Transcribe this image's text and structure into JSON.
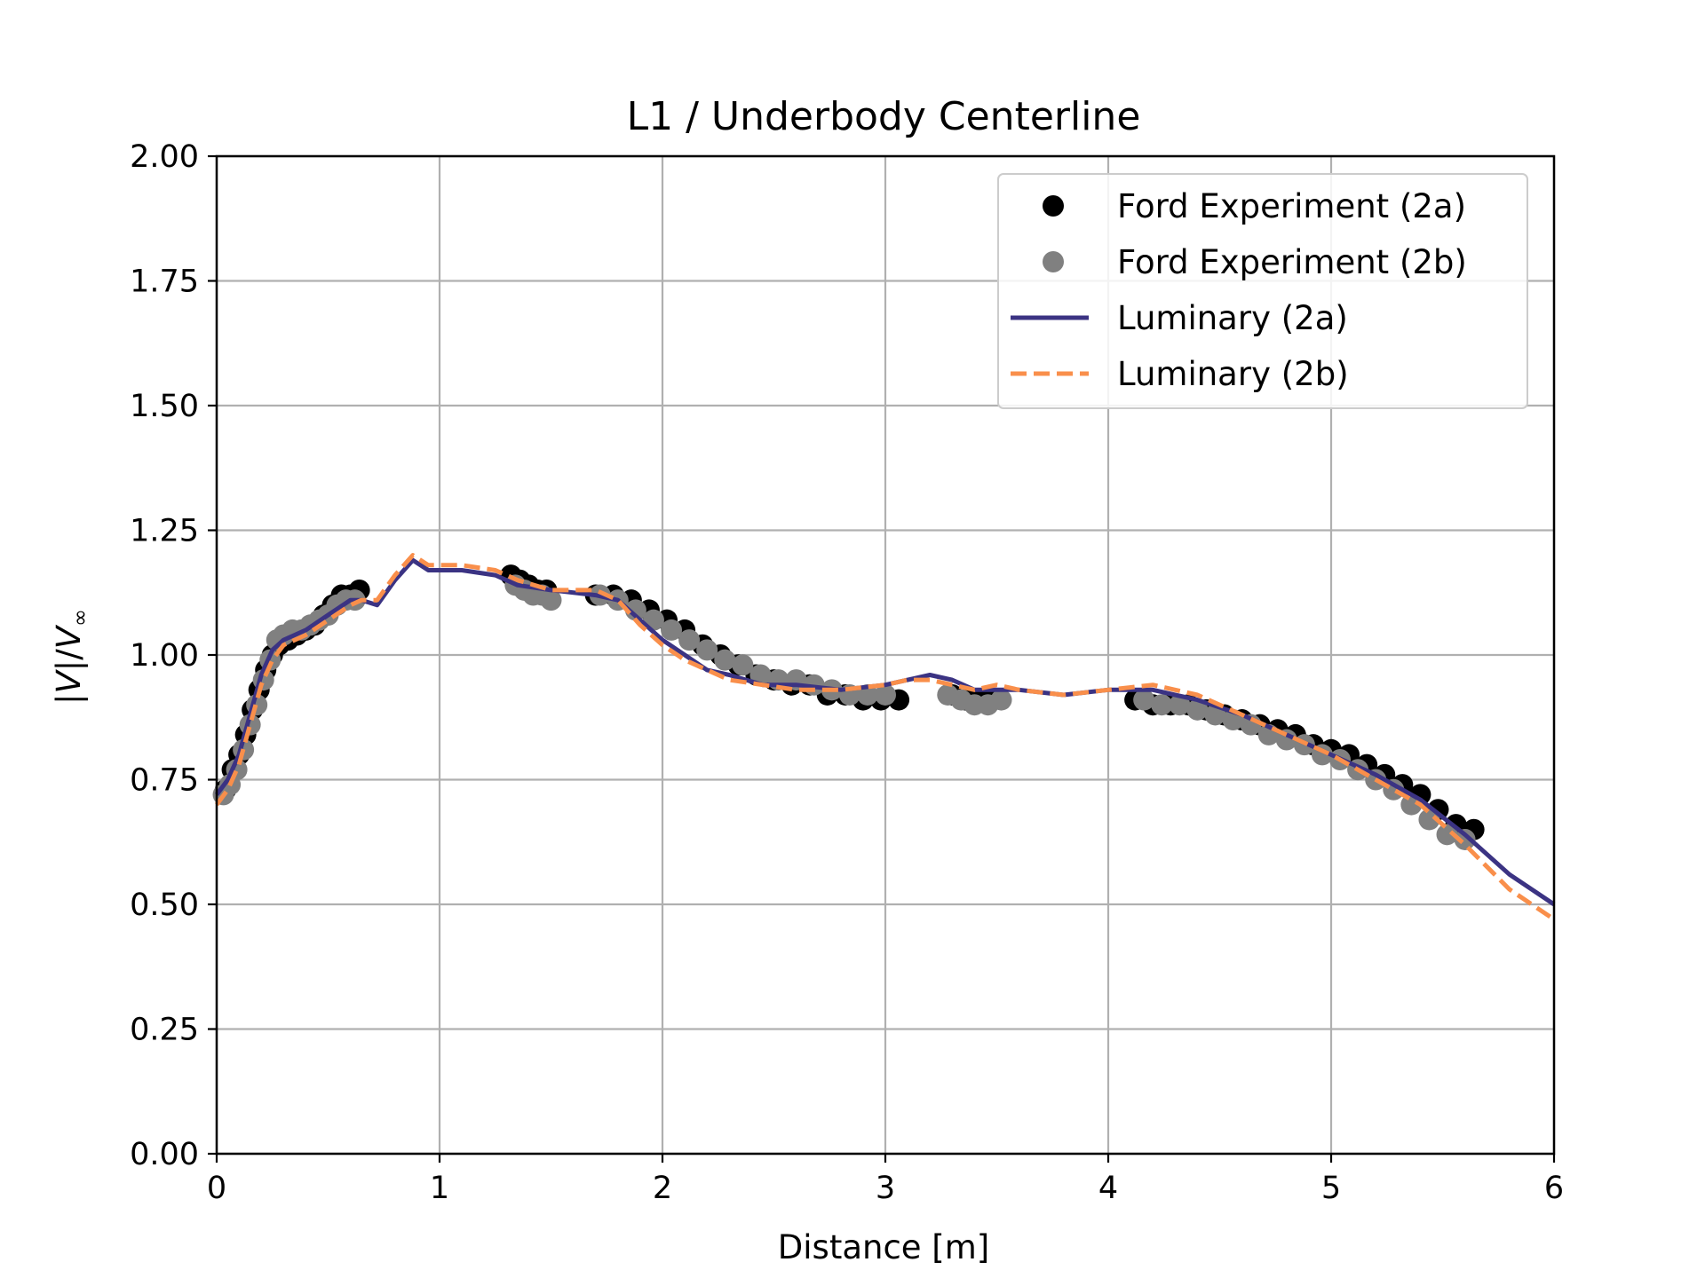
{
  "chart_data": {
    "type": "line",
    "title": "L1 / Underbody Centerline",
    "xlabel": "Distance [m]",
    "ylabel_parts": {
      "lead": "|",
      "v1": "V",
      "mid": "|/",
      "v2": "V",
      "sub": "∞"
    },
    "xlim": [
      0,
      6
    ],
    "ylim": [
      0,
      2
    ],
    "xticks": [
      0,
      1,
      2,
      3,
      4,
      5,
      6
    ],
    "yticks": [
      0.0,
      0.25,
      0.5,
      0.75,
      1.0,
      1.25,
      1.5,
      1.75,
      2.0
    ],
    "xtick_labels": [
      "0",
      "1",
      "2",
      "3",
      "4",
      "5",
      "6"
    ],
    "ytick_labels": [
      "0.00",
      "0.25",
      "0.50",
      "0.75",
      "1.00",
      "1.25",
      "1.50",
      "1.75",
      "2.00"
    ],
    "grid": true,
    "legend_position": "top-right",
    "series": [
      {
        "name": "Ford Experiment (2a)",
        "kind": "scatter",
        "color": "#000000",
        "points": [
          [
            0.04,
            0.73
          ],
          [
            0.07,
            0.77
          ],
          [
            0.1,
            0.8
          ],
          [
            0.13,
            0.84
          ],
          [
            0.16,
            0.89
          ],
          [
            0.19,
            0.93
          ],
          [
            0.22,
            0.97
          ],
          [
            0.25,
            1.0
          ],
          [
            0.28,
            1.02
          ],
          [
            0.32,
            1.03
          ],
          [
            0.36,
            1.04
          ],
          [
            0.4,
            1.05
          ],
          [
            0.44,
            1.06
          ],
          [
            0.48,
            1.08
          ],
          [
            0.52,
            1.1
          ],
          [
            0.56,
            1.12
          ],
          [
            0.6,
            1.12
          ],
          [
            0.64,
            1.13
          ],
          [
            1.32,
            1.16
          ],
          [
            1.36,
            1.15
          ],
          [
            1.4,
            1.14
          ],
          [
            1.44,
            1.13
          ],
          [
            1.48,
            1.13
          ],
          [
            1.7,
            1.12
          ],
          [
            1.78,
            1.12
          ],
          [
            1.86,
            1.11
          ],
          [
            1.94,
            1.09
          ],
          [
            2.02,
            1.07
          ],
          [
            2.1,
            1.05
          ],
          [
            2.18,
            1.02
          ],
          [
            2.26,
            1.0
          ],
          [
            2.34,
            0.98
          ],
          [
            2.42,
            0.96
          ],
          [
            2.5,
            0.95
          ],
          [
            2.58,
            0.94
          ],
          [
            2.66,
            0.94
          ],
          [
            2.74,
            0.92
          ],
          [
            2.82,
            0.92
          ],
          [
            2.9,
            0.91
          ],
          [
            2.98,
            0.91
          ],
          [
            3.06,
            0.91
          ],
          [
            3.3,
            0.92
          ],
          [
            3.36,
            0.91
          ],
          [
            3.42,
            0.91
          ],
          [
            3.48,
            0.91
          ],
          [
            4.12,
            0.91
          ],
          [
            4.2,
            0.9
          ],
          [
            4.28,
            0.9
          ],
          [
            4.36,
            0.9
          ],
          [
            4.44,
            0.89
          ],
          [
            4.52,
            0.88
          ],
          [
            4.6,
            0.87
          ],
          [
            4.68,
            0.86
          ],
          [
            4.76,
            0.85
          ],
          [
            4.84,
            0.84
          ],
          [
            4.92,
            0.82
          ],
          [
            5.0,
            0.81
          ],
          [
            5.08,
            0.8
          ],
          [
            5.16,
            0.78
          ],
          [
            5.24,
            0.76
          ],
          [
            5.32,
            0.74
          ],
          [
            5.4,
            0.72
          ],
          [
            5.48,
            0.69
          ],
          [
            5.56,
            0.66
          ],
          [
            5.64,
            0.65
          ]
        ]
      },
      {
        "name": "Ford Experiment (2b)",
        "kind": "scatter",
        "color": "#808080",
        "points": [
          [
            0.03,
            0.72
          ],
          [
            0.06,
            0.74
          ],
          [
            0.09,
            0.77
          ],
          [
            0.12,
            0.81
          ],
          [
            0.15,
            0.86
          ],
          [
            0.18,
            0.9
          ],
          [
            0.21,
            0.95
          ],
          [
            0.24,
            0.99
          ],
          [
            0.27,
            1.03
          ],
          [
            0.3,
            1.04
          ],
          [
            0.34,
            1.05
          ],
          [
            0.38,
            1.05
          ],
          [
            0.42,
            1.06
          ],
          [
            0.46,
            1.07
          ],
          [
            0.5,
            1.08
          ],
          [
            0.54,
            1.1
          ],
          [
            0.58,
            1.11
          ],
          [
            0.62,
            1.11
          ],
          [
            1.34,
            1.14
          ],
          [
            1.38,
            1.13
          ],
          [
            1.42,
            1.12
          ],
          [
            1.46,
            1.12
          ],
          [
            1.5,
            1.11
          ],
          [
            1.72,
            1.12
          ],
          [
            1.8,
            1.11
          ],
          [
            1.88,
            1.09
          ],
          [
            1.96,
            1.07
          ],
          [
            2.04,
            1.05
          ],
          [
            2.12,
            1.03
          ],
          [
            2.2,
            1.01
          ],
          [
            2.28,
            0.99
          ],
          [
            2.36,
            0.98
          ],
          [
            2.44,
            0.96
          ],
          [
            2.52,
            0.95
          ],
          [
            2.6,
            0.95
          ],
          [
            2.68,
            0.94
          ],
          [
            2.76,
            0.93
          ],
          [
            2.84,
            0.92
          ],
          [
            2.92,
            0.92
          ],
          [
            3.0,
            0.92
          ],
          [
            3.28,
            0.92
          ],
          [
            3.34,
            0.91
          ],
          [
            3.4,
            0.9
          ],
          [
            3.46,
            0.9
          ],
          [
            3.52,
            0.91
          ],
          [
            4.16,
            0.91
          ],
          [
            4.24,
            0.9
          ],
          [
            4.32,
            0.9
          ],
          [
            4.4,
            0.89
          ],
          [
            4.48,
            0.88
          ],
          [
            4.56,
            0.87
          ],
          [
            4.64,
            0.86
          ],
          [
            4.72,
            0.84
          ],
          [
            4.8,
            0.83
          ],
          [
            4.88,
            0.82
          ],
          [
            4.96,
            0.8
          ],
          [
            5.04,
            0.79
          ],
          [
            5.12,
            0.77
          ],
          [
            5.2,
            0.75
          ],
          [
            5.28,
            0.73
          ],
          [
            5.36,
            0.7
          ],
          [
            5.44,
            0.67
          ],
          [
            5.52,
            0.64
          ],
          [
            5.6,
            0.63
          ]
        ]
      },
      {
        "name": "Luminary (2a)",
        "kind": "line",
        "color": "#3b3383",
        "dash": "solid",
        "points": [
          [
            0.0,
            0.72
          ],
          [
            0.05,
            0.75
          ],
          [
            0.1,
            0.8
          ],
          [
            0.15,
            0.88
          ],
          [
            0.2,
            0.96
          ],
          [
            0.25,
            1.01
          ],
          [
            0.3,
            1.03
          ],
          [
            0.4,
            1.05
          ],
          [
            0.5,
            1.08
          ],
          [
            0.6,
            1.11
          ],
          [
            0.65,
            1.11
          ],
          [
            0.72,
            1.1
          ],
          [
            0.8,
            1.15
          ],
          [
            0.88,
            1.19
          ],
          [
            0.95,
            1.17
          ],
          [
            1.1,
            1.17
          ],
          [
            1.25,
            1.16
          ],
          [
            1.35,
            1.14
          ],
          [
            1.5,
            1.13
          ],
          [
            1.7,
            1.12
          ],
          [
            1.8,
            1.11
          ],
          [
            1.9,
            1.07
          ],
          [
            2.0,
            1.03
          ],
          [
            2.1,
            1.0
          ],
          [
            2.2,
            0.97
          ],
          [
            2.3,
            0.96
          ],
          [
            2.45,
            0.94
          ],
          [
            2.6,
            0.94
          ],
          [
            2.8,
            0.93
          ],
          [
            3.0,
            0.94
          ],
          [
            3.1,
            0.95
          ],
          [
            3.2,
            0.96
          ],
          [
            3.3,
            0.95
          ],
          [
            3.4,
            0.93
          ],
          [
            3.5,
            0.93
          ],
          [
            3.6,
            0.93
          ],
          [
            3.8,
            0.92
          ],
          [
            4.0,
            0.93
          ],
          [
            4.2,
            0.93
          ],
          [
            4.3,
            0.92
          ],
          [
            4.4,
            0.91
          ],
          [
            4.6,
            0.88
          ],
          [
            4.8,
            0.84
          ],
          [
            5.0,
            0.8
          ],
          [
            5.2,
            0.76
          ],
          [
            5.4,
            0.71
          ],
          [
            5.6,
            0.64
          ],
          [
            5.8,
            0.56
          ],
          [
            6.0,
            0.5
          ]
        ]
      },
      {
        "name": "Luminary (2b)",
        "kind": "line",
        "color": "#f98f4b",
        "dash": "dashed",
        "points": [
          [
            0.0,
            0.7
          ],
          [
            0.05,
            0.73
          ],
          [
            0.1,
            0.78
          ],
          [
            0.15,
            0.86
          ],
          [
            0.2,
            0.94
          ],
          [
            0.25,
            0.99
          ],
          [
            0.3,
            1.02
          ],
          [
            0.4,
            1.04
          ],
          [
            0.5,
            1.07
          ],
          [
            0.6,
            1.1
          ],
          [
            0.65,
            1.11
          ],
          [
            0.72,
            1.11
          ],
          [
            0.8,
            1.16
          ],
          [
            0.88,
            1.2
          ],
          [
            0.95,
            1.18
          ],
          [
            1.1,
            1.18
          ],
          [
            1.25,
            1.17
          ],
          [
            1.35,
            1.15
          ],
          [
            1.5,
            1.13
          ],
          [
            1.7,
            1.13
          ],
          [
            1.8,
            1.11
          ],
          [
            1.9,
            1.06
          ],
          [
            2.0,
            1.02
          ],
          [
            2.1,
            0.99
          ],
          [
            2.2,
            0.97
          ],
          [
            2.3,
            0.95
          ],
          [
            2.45,
            0.94
          ],
          [
            2.6,
            0.93
          ],
          [
            2.8,
            0.93
          ],
          [
            3.0,
            0.94
          ],
          [
            3.1,
            0.95
          ],
          [
            3.2,
            0.95
          ],
          [
            3.3,
            0.94
          ],
          [
            3.4,
            0.93
          ],
          [
            3.5,
            0.94
          ],
          [
            3.6,
            0.93
          ],
          [
            3.8,
            0.92
          ],
          [
            4.0,
            0.93
          ],
          [
            4.2,
            0.94
          ],
          [
            4.3,
            0.93
          ],
          [
            4.4,
            0.92
          ],
          [
            4.6,
            0.88
          ],
          [
            4.8,
            0.84
          ],
          [
            5.0,
            0.8
          ],
          [
            5.2,
            0.75
          ],
          [
            5.4,
            0.7
          ],
          [
            5.6,
            0.62
          ],
          [
            5.8,
            0.53
          ],
          [
            6.0,
            0.47
          ]
        ]
      }
    ]
  }
}
